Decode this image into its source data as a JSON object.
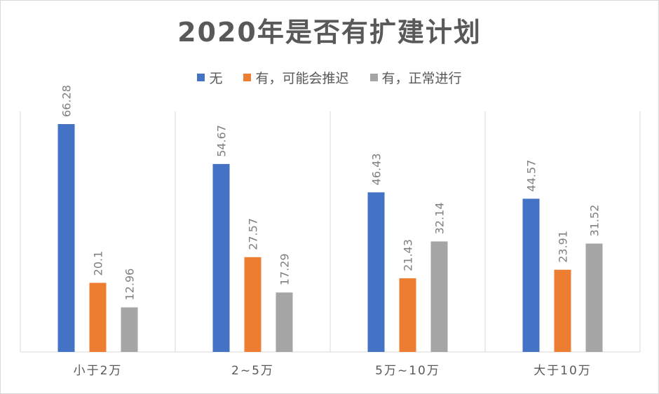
{
  "chart_data": {
    "type": "bar",
    "title": "2020年是否有扩建计划",
    "categories": [
      "小于2万",
      "2~5万",
      "5万~10万",
      "大于10万"
    ],
    "series": [
      {
        "name": "无",
        "color": "#4472c4",
        "values": [
          66.28,
          54.67,
          46.43,
          44.57
        ]
      },
      {
        "name": "有，可能会推迟",
        "color": "#ed7d31",
        "values": [
          20.1,
          27.57,
          21.43,
          23.91
        ]
      },
      {
        "name": "有，正常进行",
        "color": "#a5a5a5",
        "values": [
          12.96,
          17.29,
          32.14,
          31.52
        ]
      }
    ],
    "ylim": [
      0,
      70
    ],
    "legend_position": "top",
    "grid": "vertical-separators"
  }
}
